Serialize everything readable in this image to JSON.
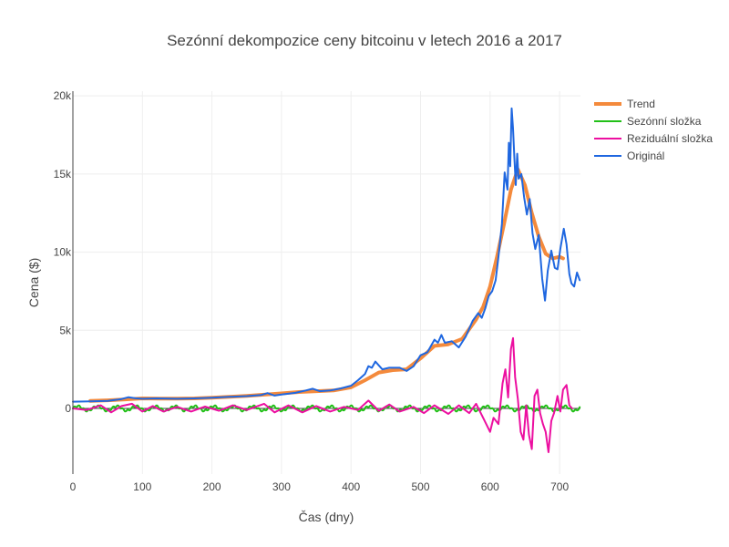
{
  "chart_data": {
    "type": "line",
    "title": "Sezónní dekompozice ceny bitcoinu v letech 2016 a 2017",
    "xlabel": "Čas (dny)",
    "ylabel": "Cena ($)",
    "xlim": [
      0,
      730
    ],
    "ylim": [
      -4200,
      20300
    ],
    "x_ticks": [
      0,
      100,
      200,
      300,
      400,
      500,
      600,
      700
    ],
    "x_tick_labels": [
      "0",
      "100",
      "200",
      "300",
      "400",
      "500",
      "600",
      "700"
    ],
    "y_ticks": [
      0,
      5000,
      10000,
      15000,
      20000
    ],
    "y_tick_labels": [
      "0",
      "5k",
      "10k",
      "15k",
      "20k"
    ],
    "grid": true,
    "legend_position": "top-right",
    "series": [
      {
        "name": "Trend",
        "color": "#f48a3c",
        "width": 4,
        "points": [
          [
            25,
            480
          ],
          [
            50,
            520
          ],
          [
            75,
            580
          ],
          [
            100,
            640
          ],
          [
            125,
            630
          ],
          [
            150,
            630
          ],
          [
            175,
            640
          ],
          [
            200,
            680
          ],
          [
            225,
            740
          ],
          [
            250,
            800
          ],
          [
            275,
            880
          ],
          [
            300,
            960
          ],
          [
            325,
            1050
          ],
          [
            350,
            1100
          ],
          [
            375,
            1150
          ],
          [
            400,
            1350
          ],
          [
            420,
            1800
          ],
          [
            440,
            2300
          ],
          [
            460,
            2450
          ],
          [
            480,
            2500
          ],
          [
            500,
            3200
          ],
          [
            520,
            4000
          ],
          [
            540,
            4100
          ],
          [
            560,
            4450
          ],
          [
            580,
            5700
          ],
          [
            590,
            6500
          ],
          [
            600,
            7800
          ],
          [
            610,
            9700
          ],
          [
            620,
            11800
          ],
          [
            630,
            14000
          ],
          [
            640,
            15300
          ],
          [
            650,
            14300
          ],
          [
            660,
            12500
          ],
          [
            670,
            11000
          ],
          [
            680,
            9900
          ],
          [
            690,
            9600
          ],
          [
            700,
            9700
          ],
          [
            705,
            9600
          ]
        ]
      },
      {
        "name": "Sezónní složka",
        "color": "#22c018",
        "width": 2,
        "points": []
      },
      {
        "name": "Reziduální složka",
        "color": "#ec0fa0",
        "width": 2,
        "points": [
          [
            0,
            0
          ],
          [
            20,
            -100
          ],
          [
            40,
            200
          ],
          [
            55,
            -250
          ],
          [
            70,
            150
          ],
          [
            85,
            300
          ],
          [
            100,
            -200
          ],
          [
            115,
            150
          ],
          [
            130,
            -200
          ],
          [
            150,
            100
          ],
          [
            170,
            -200
          ],
          [
            190,
            120
          ],
          [
            210,
            -150
          ],
          [
            230,
            200
          ],
          [
            250,
            -100
          ],
          [
            275,
            300
          ],
          [
            290,
            -250
          ],
          [
            310,
            200
          ],
          [
            330,
            -250
          ],
          [
            350,
            150
          ],
          [
            370,
            -200
          ],
          [
            390,
            100
          ],
          [
            410,
            -100
          ],
          [
            425,
            500
          ],
          [
            440,
            -150
          ],
          [
            455,
            250
          ],
          [
            470,
            -200
          ],
          [
            490,
            100
          ],
          [
            505,
            -300
          ],
          [
            520,
            200
          ],
          [
            540,
            -350
          ],
          [
            555,
            200
          ],
          [
            570,
            -300
          ],
          [
            580,
            300
          ],
          [
            590,
            -600
          ],
          [
            600,
            -1500
          ],
          [
            605,
            -600
          ],
          [
            612,
            -1000
          ],
          [
            618,
            1600
          ],
          [
            622,
            2500
          ],
          [
            626,
            700
          ],
          [
            630,
            3800
          ],
          [
            633,
            4500
          ],
          [
            636,
            2000
          ],
          [
            640,
            600
          ],
          [
            644,
            -1500
          ],
          [
            648,
            -2000
          ],
          [
            652,
            200
          ],
          [
            656,
            -1700
          ],
          [
            660,
            -2600
          ],
          [
            664,
            800
          ],
          [
            668,
            1200
          ],
          [
            672,
            -300
          ],
          [
            676,
            -1000
          ],
          [
            680,
            -1500
          ],
          [
            684,
            -2800
          ],
          [
            688,
            -800
          ],
          [
            692,
            -300
          ],
          [
            697,
            800
          ],
          [
            701,
            -200
          ],
          [
            705,
            1200
          ],
          [
            710,
            1500
          ],
          [
            714,
            200
          ],
          [
            718,
            0
          ]
        ]
      },
      {
        "name": "Originál",
        "color": "#1f67e0",
        "width": 2,
        "points": [
          [
            0,
            430
          ],
          [
            25,
            450
          ],
          [
            50,
            480
          ],
          [
            70,
            600
          ],
          [
            80,
            720
          ],
          [
            90,
            650
          ],
          [
            100,
            620
          ],
          [
            120,
            640
          ],
          [
            150,
            620
          ],
          [
            175,
            640
          ],
          [
            200,
            690
          ],
          [
            225,
            740
          ],
          [
            250,
            790
          ],
          [
            270,
            850
          ],
          [
            280,
            980
          ],
          [
            290,
            820
          ],
          [
            300,
            890
          ],
          [
            320,
            1000
          ],
          [
            335,
            1150
          ],
          [
            345,
            1260
          ],
          [
            355,
            1100
          ],
          [
            370,
            1150
          ],
          [
            385,
            1280
          ],
          [
            400,
            1450
          ],
          [
            410,
            1800
          ],
          [
            420,
            2200
          ],
          [
            425,
            2700
          ],
          [
            430,
            2600
          ],
          [
            435,
            3000
          ],
          [
            445,
            2500
          ],
          [
            455,
            2600
          ],
          [
            470,
            2600
          ],
          [
            480,
            2400
          ],
          [
            490,
            2700
          ],
          [
            500,
            3400
          ],
          [
            510,
            3600
          ],
          [
            520,
            4400
          ],
          [
            525,
            4200
          ],
          [
            530,
            4700
          ],
          [
            535,
            4200
          ],
          [
            545,
            4300
          ],
          [
            555,
            3900
          ],
          [
            565,
            4600
          ],
          [
            575,
            5600
          ],
          [
            583,
            6100
          ],
          [
            588,
            5800
          ],
          [
            593,
            6400
          ],
          [
            598,
            7200
          ],
          [
            603,
            7500
          ],
          [
            608,
            8200
          ],
          [
            612,
            9700
          ],
          [
            617,
            11800
          ],
          [
            621,
            15100
          ],
          [
            625,
            14000
          ],
          [
            627,
            17000
          ],
          [
            629,
            15500
          ],
          [
            631,
            19200
          ],
          [
            633,
            17900
          ],
          [
            635,
            16000
          ],
          [
            637,
            14300
          ],
          [
            639,
            16300
          ],
          [
            641,
            14700
          ],
          [
            645,
            15000
          ],
          [
            649,
            13500
          ],
          [
            653,
            12400
          ],
          [
            657,
            13400
          ],
          [
            661,
            11200
          ],
          [
            665,
            10200
          ],
          [
            670,
            11100
          ],
          [
            675,
            8300
          ],
          [
            679,
            6900
          ],
          [
            683,
            8800
          ],
          [
            688,
            10100
          ],
          [
            693,
            9000
          ],
          [
            697,
            8900
          ],
          [
            701,
            10200
          ],
          [
            706,
            11500
          ],
          [
            710,
            10500
          ],
          [
            714,
            8600
          ],
          [
            717,
            8000
          ],
          [
            721,
            7800
          ],
          [
            725,
            8700
          ],
          [
            729,
            8200
          ]
        ]
      }
    ]
  }
}
